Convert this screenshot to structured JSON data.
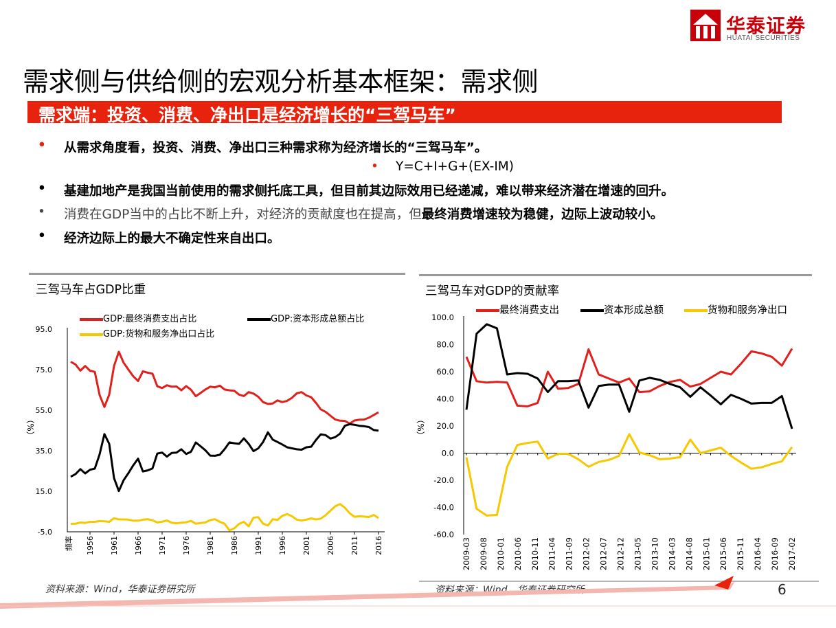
{
  "logo": {
    "cn": "华泰证券",
    "en": "HUATAI SECURITIES",
    "color": "#c8000a"
  },
  "page_title": "需求侧与供给侧的宏观分析基本框架：需求侧",
  "banner": "需求端：投资、消费、净出口是经济增长的“三驾马车”",
  "bullets": {
    "b1": "从需求角度看，投资、消费、净出口三种需求称为经济增长的“三驾马车”。",
    "formula": "Y=C+I+G+(EX-IM)",
    "b2": "基建加地产是我国当前使用的需求侧托底工具，但目前其边际效用已经递减，难以带来经济潜在增速的回升。",
    "b3a": "消费在GDP当中的占比不断上升，对经济的贡献度也在提高，但",
    "b3b": "最终消费增速较为稳健，边际上波动较小。",
    "b4": "经济边际上的最大不确定性来自出口。"
  },
  "source_left": "资料来源：Wind，华泰证券研究所",
  "source_right": "资料来源：Wind，华泰证券研究所",
  "page_number": "6",
  "colors": {
    "red": "#e0201c",
    "black": "#000000",
    "yellow": "#f5c800",
    "banner": "#e8230d"
  },
  "chart_data": [
    {
      "type": "line",
      "title": "三驾马车占GDP比重",
      "ylabel": "（%）",
      "xlabel_first": "频率",
      "ylim": [
        -5,
        95
      ],
      "yticks": [
        "95.0",
        "75.0",
        "55.0",
        "35.0",
        "15.0",
        "-5.0"
      ],
      "ytick_values": [
        95,
        75,
        55,
        35,
        15,
        -5
      ],
      "xtick_labels": [
        "1956",
        "1961",
        "1966",
        "1971",
        "1976",
        "1981",
        "1986",
        "1991",
        "1996",
        "2001",
        "2006",
        "2011",
        "2016"
      ],
      "x_start": 1952,
      "x_end": 2016,
      "legend": [
        "GDP:最终消费支出占比",
        "GDP:资本形成总额占比",
        "GDP:货物和服务净出口占比"
      ],
      "series": [
        {
          "name": "GDP:最终消费支出占比",
          "color": "#e0201c",
          "values": [
            78.9,
            77.5,
            74.5,
            76.8,
            74.5,
            73.9,
            62.5,
            56.6,
            62.7,
            76.8,
            83.8,
            78.4,
            75.0,
            71.7,
            69.4,
            74.2,
            73.5,
            73.0,
            66.8,
            65.9,
            67.3,
            66.6,
            66.7,
            64.8,
            66.9,
            65.1,
            61.9,
            63.5,
            65.2,
            66.6,
            66.3,
            67.1,
            65.2,
            64.8,
            64.6,
            62.7,
            62.0,
            63.9,
            63.2,
            61.6,
            59.0,
            58.1,
            58.3,
            59.8,
            59.0,
            59.6,
            61.1,
            63.3,
            63.9,
            62.3,
            61.4,
            58.6,
            55.4,
            54.2,
            52.3,
            50.4,
            49.8,
            49.7,
            48.4,
            49.9,
            50.3,
            50.4,
            51.3,
            52.6,
            54.0
          ]
        },
        {
          "name": "GDP:资本形成总额占比",
          "color": "#000000",
          "values": [
            22.2,
            23.5,
            25.9,
            23.8,
            25.6,
            26.2,
            33.2,
            43.2,
            38.4,
            21.5,
            15.1,
            20.5,
            24.0,
            27.8,
            31.1,
            24.8,
            25.3,
            26.3,
            33.6,
            34.1,
            32.1,
            33.9,
            34.1,
            35.7,
            33.4,
            34.5,
            39.1,
            37.2,
            35.2,
            32.6,
            32.5,
            33.0,
            35.8,
            39.1,
            38.7,
            38.4,
            41.1,
            38.4,
            34.8,
            36.2,
            39.3,
            44.1,
            40.5,
            39.3,
            38.1,
            36.7,
            36.2,
            35.7,
            35.5,
            36.7,
            37.0,
            40.3,
            43.1,
            42.7,
            41.0,
            41.7,
            43.4,
            47.3,
            48.1,
            47.8,
            47.3,
            47.1,
            46.7,
            45.2,
            44.9
          ]
        },
        {
          "name": "GDP:货物和服务净出口占比",
          "color": "#f5c800",
          "values": [
            -1.1,
            -1.0,
            -0.4,
            -0.6,
            -0.1,
            -0.1,
            0.3,
            0.2,
            -0.1,
            1.7,
            1.1,
            1.1,
            1.0,
            0.5,
            0.5,
            1.0,
            1.2,
            0.7,
            -0.4,
            0.0,
            0.6,
            -0.5,
            -0.8,
            -0.5,
            -0.3,
            0.4,
            -1.0,
            -0.7,
            -0.4,
            0.8,
            1.2,
            -0.1,
            -1.0,
            -4.3,
            -3.3,
            -1.1,
            -0.1,
            -2.3,
            2.0,
            2.2,
            -1.0,
            -1.9,
            1.2,
            0.9,
            2.9,
            3.7,
            2.7,
            1.0,
            0.6,
            1.0,
            1.6,
            1.1,
            1.5,
            3.2,
            5.4,
            7.6,
            8.7,
            6.9,
            4.2,
            2.4,
            2.7,
            2.5,
            2.3,
            3.3,
            1.8
          ]
        }
      ]
    },
    {
      "type": "line",
      "title": "三驾马车对GDP的贡献率",
      "ylabel": "（%）",
      "ylim": [
        -60,
        100
      ],
      "yticks": [
        "100.0",
        "80.0",
        "60.0",
        "40.0",
        "20.0",
        "0.0",
        "-20.0",
        "-40.0",
        "-60.0"
      ],
      "ytick_values": [
        100,
        80,
        60,
        40,
        20,
        0,
        -20,
        -40,
        -60
      ],
      "xtick_labels": [
        "2009-03",
        "2009-08",
        "2010-01",
        "2010-06",
        "2010-11",
        "2011-04",
        "2011-09",
        "2012-02",
        "2012-07",
        "2012-12",
        "2013-05",
        "2013-10",
        "2014-03",
        "2014-08",
        "2015-01",
        "2015-06",
        "2015-11",
        "2016-04",
        "2016-09",
        "2017-02"
      ],
      "legend": [
        "最终消费支出",
        "资本形成总额",
        "货物和服务净出口"
      ],
      "series": [
        {
          "name": "最终消费支出",
          "color": "#e0201c",
          "values": [
            71,
            53,
            52,
            52.5,
            52,
            35,
            34.5,
            37,
            60,
            47.5,
            48,
            51,
            76.5,
            58,
            55,
            52,
            55,
            45,
            45.5,
            49.5,
            52.5,
            54,
            49,
            51,
            55.5,
            60,
            58,
            66,
            75,
            73.5,
            71,
            64.5,
            77
          ]
        },
        {
          "name": "资本形成总额",
          "color": "#000000",
          "values": [
            32,
            88,
            95,
            92,
            58,
            59,
            58.5,
            55,
            45,
            53,
            53,
            53.5,
            33.5,
            49.5,
            50.5,
            50.5,
            30.5,
            53.5,
            55.5,
            54,
            51,
            48.5,
            41.5,
            48.5,
            42.5,
            36,
            43,
            40,
            36.5,
            37,
            37,
            42,
            18
          ]
        },
        {
          "name": "货物和服务净出口",
          "color": "#f5c800",
          "values": [
            -3,
            -41,
            -46,
            -45.5,
            -10,
            6,
            7.5,
            8.5,
            -4,
            -0.5,
            -0.5,
            -4.5,
            -10,
            -6.5,
            -5,
            -2,
            14,
            0.5,
            -1.5,
            -4.5,
            -4,
            -3,
            10,
            0,
            2,
            4,
            -2,
            -7,
            -11.5,
            -10.5,
            -8,
            -6,
            4.5
          ]
        }
      ]
    }
  ]
}
